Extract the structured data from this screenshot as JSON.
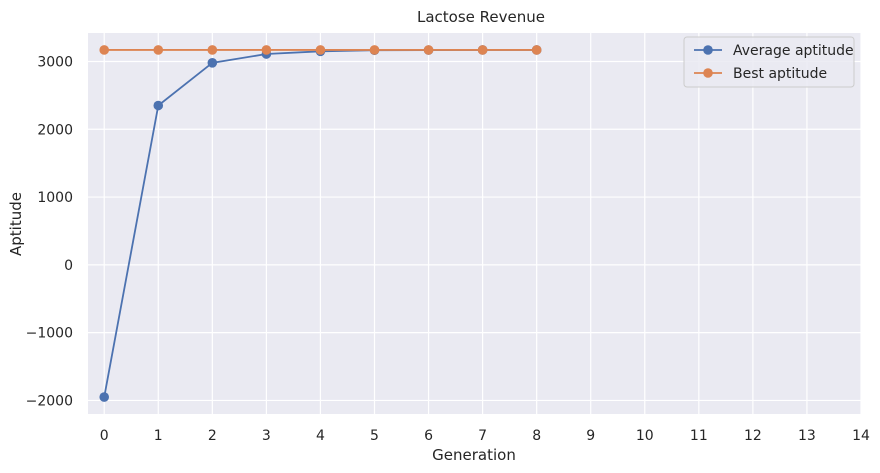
{
  "chart_data": {
    "type": "line",
    "title": "Lactose Revenue",
    "xlabel": "Generation",
    "ylabel": "Aptitude",
    "x": [
      0,
      1,
      2,
      3,
      4,
      5,
      6,
      7,
      8
    ],
    "series": [
      {
        "name": "Average aptitude",
        "color": "#4c72b0",
        "values": [
          -1950,
          2350,
          2980,
          3110,
          3150,
          3165,
          3168,
          3170,
          3170
        ]
      },
      {
        "name": "Best aptitude",
        "color": "#dd8452",
        "values": [
          3170,
          3170,
          3170,
          3170,
          3170,
          3170,
          3170,
          3170,
          3170
        ]
      }
    ],
    "xlim": [
      -0.3,
      14
    ],
    "ylim": [
      -2200,
      3420
    ],
    "xticks": [
      0,
      1,
      2,
      3,
      4,
      5,
      6,
      7,
      8,
      9,
      10,
      11,
      12,
      13,
      14
    ],
    "yticks": [
      -2000,
      -1000,
      0,
      1000,
      2000,
      3000
    ],
    "ytick_labels": [
      "−2000",
      "−1000",
      "0",
      "1000",
      "2000",
      "3000"
    ],
    "grid": true,
    "legend_position": "top-right",
    "background": "#eaeaf2"
  }
}
